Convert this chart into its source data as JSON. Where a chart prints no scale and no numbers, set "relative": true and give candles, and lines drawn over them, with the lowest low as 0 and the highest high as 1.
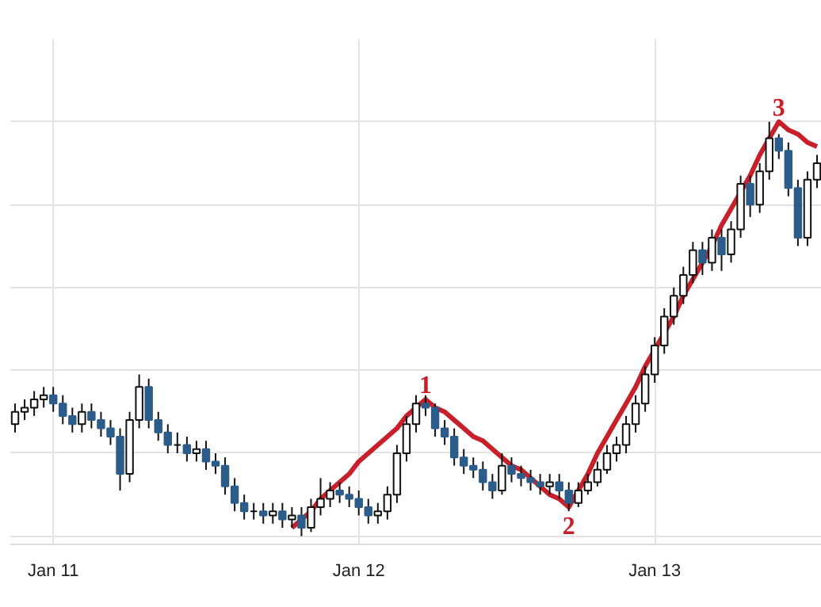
{
  "chart_data": {
    "type": "candlestick",
    "relative": true,
    "categories": [
      null,
      null,
      null,
      null,
      "Jan 11",
      null,
      null,
      null,
      null,
      null,
      null,
      null,
      null,
      null,
      null,
      null,
      null,
      null,
      null,
      null,
      null,
      null,
      null,
      null,
      null,
      null,
      null,
      null,
      null,
      null,
      null,
      null,
      null,
      null,
      null,
      null,
      "Jan 12",
      null,
      null,
      null,
      null,
      null,
      null,
      null,
      null,
      null,
      null,
      null,
      null,
      null,
      null,
      null,
      null,
      null,
      null,
      null,
      null,
      null,
      null,
      null,
      null,
      null,
      null,
      null,
      null,
      null,
      null,
      "Jan 13",
      null,
      null,
      null,
      null,
      null,
      null,
      null,
      null,
      null,
      null,
      null,
      null,
      null,
      null,
      null,
      null,
      null
    ],
    "ohlc": [
      [
        0.27,
        0.32,
        0.25,
        0.3
      ],
      [
        0.3,
        0.33,
        0.28,
        0.31
      ],
      [
        0.31,
        0.35,
        0.29,
        0.33
      ],
      [
        0.33,
        0.36,
        0.31,
        0.34
      ],
      [
        0.34,
        0.36,
        0.3,
        0.32
      ],
      [
        0.32,
        0.34,
        0.27,
        0.29
      ],
      [
        0.29,
        0.31,
        0.25,
        0.27
      ],
      [
        0.27,
        0.32,
        0.25,
        0.3
      ],
      [
        0.3,
        0.32,
        0.26,
        0.28
      ],
      [
        0.28,
        0.3,
        0.24,
        0.26
      ],
      [
        0.26,
        0.28,
        0.22,
        0.24
      ],
      [
        0.24,
        0.26,
        0.11,
        0.15
      ],
      [
        0.15,
        0.3,
        0.13,
        0.28
      ],
      [
        0.28,
        0.39,
        0.26,
        0.36
      ],
      [
        0.36,
        0.38,
        0.26,
        0.28
      ],
      [
        0.28,
        0.3,
        0.23,
        0.25
      ],
      [
        0.25,
        0.27,
        0.2,
        0.22
      ],
      [
        0.22,
        0.25,
        0.2,
        0.22
      ],
      [
        0.22,
        0.24,
        0.18,
        0.2
      ],
      [
        0.2,
        0.23,
        0.18,
        0.21
      ],
      [
        0.21,
        0.23,
        0.16,
        0.18
      ],
      [
        0.18,
        0.2,
        0.15,
        0.17
      ],
      [
        0.17,
        0.19,
        0.1,
        0.12
      ],
      [
        0.12,
        0.14,
        0.06,
        0.08
      ],
      [
        0.08,
        0.1,
        0.04,
        0.06
      ],
      [
        0.06,
        0.08,
        0.04,
        0.06
      ],
      [
        0.06,
        0.08,
        0.03,
        0.05
      ],
      [
        0.05,
        0.08,
        0.03,
        0.06
      ],
      [
        0.06,
        0.08,
        0.02,
        0.04
      ],
      [
        0.04,
        0.07,
        0.02,
        0.05
      ],
      [
        0.05,
        0.07,
        0.0,
        0.02
      ],
      [
        0.02,
        0.09,
        0.01,
        0.07
      ],
      [
        0.07,
        0.14,
        0.05,
        0.09
      ],
      [
        0.09,
        0.13,
        0.07,
        0.11
      ],
      [
        0.11,
        0.13,
        0.08,
        0.1
      ],
      [
        0.1,
        0.12,
        0.07,
        0.09
      ],
      [
        0.09,
        0.11,
        0.05,
        0.07
      ],
      [
        0.07,
        0.09,
        0.03,
        0.05
      ],
      [
        0.05,
        0.08,
        0.03,
        0.06
      ],
      [
        0.06,
        0.12,
        0.04,
        0.1
      ],
      [
        0.1,
        0.22,
        0.08,
        0.2
      ],
      [
        0.2,
        0.29,
        0.18,
        0.27
      ],
      [
        0.27,
        0.34,
        0.25,
        0.32
      ],
      [
        0.32,
        0.34,
        0.29,
        0.31
      ],
      [
        0.31,
        0.32,
        0.24,
        0.26
      ],
      [
        0.26,
        0.28,
        0.22,
        0.24
      ],
      [
        0.24,
        0.26,
        0.17,
        0.19
      ],
      [
        0.19,
        0.21,
        0.15,
        0.17
      ],
      [
        0.17,
        0.19,
        0.14,
        0.16
      ],
      [
        0.16,
        0.18,
        0.11,
        0.13
      ],
      [
        0.13,
        0.15,
        0.09,
        0.11
      ],
      [
        0.11,
        0.2,
        0.1,
        0.17
      ],
      [
        0.17,
        0.19,
        0.13,
        0.15
      ],
      [
        0.15,
        0.17,
        0.12,
        0.14
      ],
      [
        0.14,
        0.16,
        0.11,
        0.13
      ],
      [
        0.13,
        0.15,
        0.1,
        0.12
      ],
      [
        0.12,
        0.15,
        0.1,
        0.13
      ],
      [
        0.13,
        0.15,
        0.09,
        0.11
      ],
      [
        0.11,
        0.13,
        0.06,
        0.08
      ],
      [
        0.08,
        0.13,
        0.07,
        0.11
      ],
      [
        0.11,
        0.15,
        0.1,
        0.13
      ],
      [
        0.13,
        0.18,
        0.12,
        0.16
      ],
      [
        0.16,
        0.22,
        0.15,
        0.2
      ],
      [
        0.2,
        0.24,
        0.18,
        0.22
      ],
      [
        0.22,
        0.29,
        0.2,
        0.27
      ],
      [
        0.27,
        0.34,
        0.25,
        0.32
      ],
      [
        0.32,
        0.41,
        0.3,
        0.39
      ],
      [
        0.39,
        0.48,
        0.37,
        0.46
      ],
      [
        0.46,
        0.55,
        0.44,
        0.53
      ],
      [
        0.53,
        0.6,
        0.51,
        0.58
      ],
      [
        0.58,
        0.65,
        0.56,
        0.63
      ],
      [
        0.63,
        0.71,
        0.61,
        0.69
      ],
      [
        0.69,
        0.71,
        0.63,
        0.66
      ],
      [
        0.66,
        0.74,
        0.64,
        0.72
      ],
      [
        0.72,
        0.74,
        0.64,
        0.68
      ],
      [
        0.68,
        0.76,
        0.66,
        0.74
      ],
      [
        0.74,
        0.87,
        0.72,
        0.85
      ],
      [
        0.85,
        0.87,
        0.77,
        0.8
      ],
      [
        0.8,
        0.9,
        0.78,
        0.88
      ],
      [
        0.88,
        1.0,
        0.86,
        0.96
      ],
      [
        0.96,
        0.97,
        0.91,
        0.93
      ],
      [
        0.93,
        0.95,
        0.82,
        0.84
      ],
      [
        0.84,
        0.86,
        0.7,
        0.72
      ],
      [
        0.72,
        0.88,
        0.7,
        0.86
      ],
      [
        0.86,
        0.92,
        0.84,
        0.9
      ]
    ],
    "series": [
      {
        "type": "line",
        "color": "#c8202a",
        "values": [
          null,
          null,
          null,
          null,
          null,
          null,
          null,
          null,
          null,
          null,
          null,
          null,
          null,
          null,
          null,
          null,
          null,
          null,
          null,
          null,
          null,
          null,
          null,
          null,
          null,
          null,
          null,
          null,
          null,
          0.02,
          0.04,
          0.06,
          0.09,
          0.11,
          0.13,
          0.15,
          0.18,
          0.2,
          0.22,
          0.24,
          0.26,
          0.29,
          0.31,
          0.33,
          0.31,
          0.3,
          0.28,
          0.26,
          0.24,
          0.23,
          0.21,
          0.19,
          0.17,
          0.16,
          0.14,
          0.12,
          0.1,
          0.09,
          0.07,
          0.11,
          0.15,
          0.2,
          0.24,
          0.28,
          0.32,
          0.36,
          0.41,
          0.45,
          0.49,
          0.53,
          0.58,
          0.62,
          0.66,
          0.7,
          0.75,
          0.79,
          0.83,
          0.87,
          0.92,
          0.96,
          1.0,
          0.98,
          0.97,
          0.95,
          0.94
        ]
      }
    ],
    "annotations": [
      "1",
      "2",
      "3"
    ],
    "grid": true
  }
}
